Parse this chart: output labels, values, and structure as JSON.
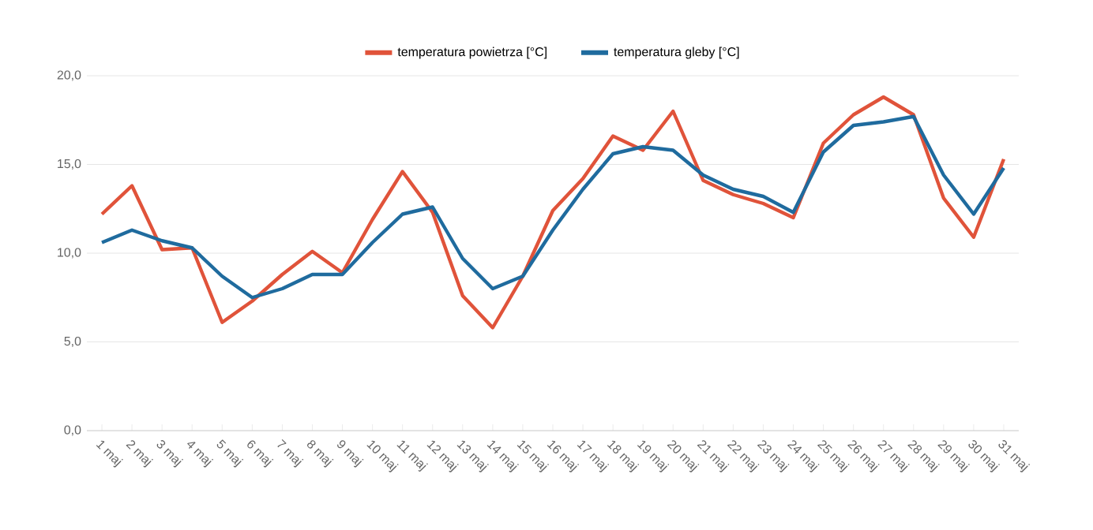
{
  "chart_data": {
    "type": "line",
    "categories": [
      "1 maj",
      "2 maj",
      "3 maj",
      "4 maj",
      "5 maj",
      "6 maj",
      "7 maj",
      "8 maj",
      "9 maj",
      "10 maj",
      "11 maj",
      "12 maj",
      "13 maj",
      "14 maj",
      "15 maj",
      "16 maj",
      "17 maj",
      "18 maj",
      "19 maj",
      "20 maj",
      "21 maj",
      "22 maj",
      "23 maj",
      "24 maj",
      "25 maj",
      "26 maj",
      "27 maj",
      "28 maj",
      "29 maj",
      "30 maj",
      "31 maj"
    ],
    "series": [
      {
        "name": "temperatura powietrza [°C]",
        "color": "#e0533a",
        "values": [
          12.2,
          13.8,
          10.2,
          10.3,
          6.1,
          7.3,
          8.8,
          10.1,
          8.9,
          11.9,
          14.6,
          12.3,
          7.6,
          5.8,
          8.7,
          12.4,
          14.2,
          16.6,
          15.8,
          18.0,
          14.1,
          13.3,
          12.8,
          12.0,
          16.2,
          17.8,
          18.8,
          17.8,
          13.1,
          10.9,
          15.3
        ]
      },
      {
        "name": "temperatura gleby [°C]",
        "color": "#1f6b9e",
        "values": [
          10.6,
          11.3,
          10.7,
          10.3,
          8.7,
          7.5,
          8.0,
          8.8,
          8.8,
          10.6,
          12.2,
          12.6,
          9.7,
          8.0,
          8.7,
          11.3,
          13.6,
          15.6,
          16.0,
          15.8,
          14.4,
          13.6,
          13.2,
          12.3,
          15.7,
          17.2,
          17.4,
          17.7,
          14.4,
          12.2,
          14.8
        ]
      }
    ],
    "ylim": [
      0,
      20
    ],
    "yticks": [
      {
        "value": 0,
        "label": "0,0"
      },
      {
        "value": 5,
        "label": "5,0"
      },
      {
        "value": 10,
        "label": "10,0"
      },
      {
        "value": 15,
        "label": "15,0"
      },
      {
        "value": 20,
        "label": "20,0"
      }
    ],
    "grid": "y",
    "legend": "top",
    "marker": "none",
    "line_style": "solid"
  }
}
